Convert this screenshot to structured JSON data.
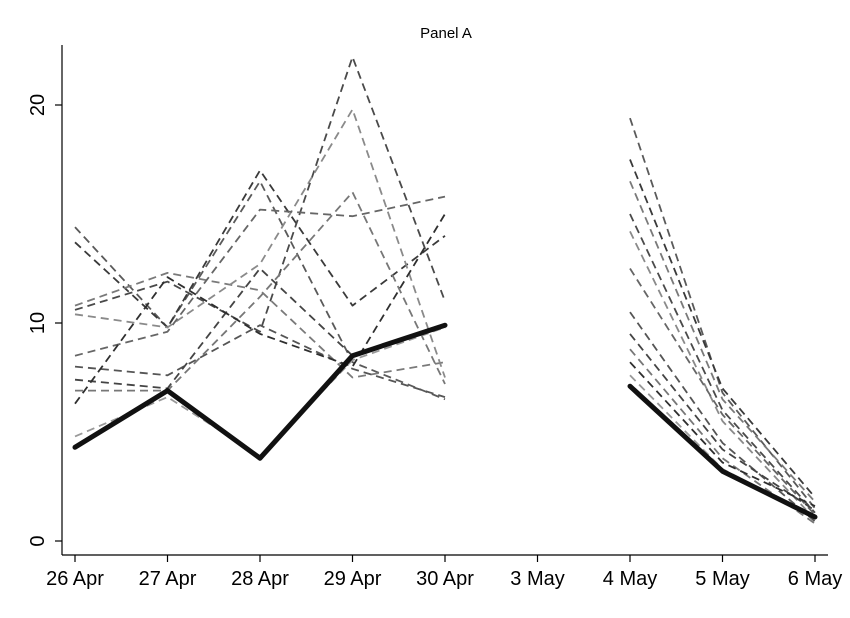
{
  "chart_data": {
    "type": "line",
    "title": "Panel A",
    "xlabel": "",
    "ylabel": "",
    "categories": [
      "26 Apr",
      "27 Apr",
      "28 Apr",
      "29 Apr",
      "30 Apr",
      "3 May",
      "4 May",
      "5 May",
      "6 May"
    ],
    "ylim": [
      0,
      23
    ],
    "yticks": [
      0,
      10,
      20
    ],
    "grid": false,
    "legend": "none",
    "highlight_series": {
      "style": "solid-black-thick",
      "values": [
        4.3,
        6.9,
        3.8,
        8.5,
        9.9,
        null,
        7.1,
        3.2,
        1.1
      ]
    },
    "series": [
      {
        "values": [
          14.4,
          9.8,
          16.5,
          8.2,
          6.5,
          null,
          19.4,
          6.8,
          1.5
        ]
      },
      {
        "values": [
          13.7,
          9.8,
          17.0,
          10.8,
          14.0,
          null,
          17.5,
          7.0,
          2.0
        ]
      },
      {
        "values": [
          10.8,
          12.3,
          11.5,
          7.5,
          8.2,
          null,
          16.5,
          6.5,
          1.8
        ]
      },
      {
        "values": [
          10.6,
          11.9,
          9.6,
          22.2,
          11.0,
          null,
          15.0,
          6.0,
          1.3
        ]
      },
      {
        "values": [
          10.4,
          9.8,
          12.7,
          19.8,
          7.5,
          null,
          14.2,
          5.5,
          1.0
        ]
      },
      {
        "values": [
          8.5,
          9.6,
          15.2,
          14.9,
          15.8,
          null,
          12.5,
          5.8,
          1.2
        ]
      },
      {
        "values": [
          8.0,
          7.6,
          9.9,
          7.9,
          6.6,
          null,
          10.5,
          4.5,
          0.9
        ]
      },
      {
        "values": [
          7.4,
          7.0,
          12.5,
          8.5,
          9.8,
          null,
          9.5,
          4.2,
          1.4
        ]
      },
      {
        "values": [
          6.9,
          6.9,
          11.2,
          16.0,
          7.2,
          null,
          8.8,
          3.8,
          0.8
        ]
      },
      {
        "values": [
          6.3,
          12.1,
          9.5,
          8.0,
          15.0,
          null,
          8.2,
          3.6,
          1.6
        ]
      },
      {
        "values": [
          4.8,
          6.6,
          3.9,
          8.3,
          9.8,
          null,
          7.6,
          3.3,
          1.1
        ]
      }
    ],
    "colors": {
      "highlight": "#111111",
      "series": [
        "#5a5a5a",
        "#3a3a3a",
        "#7a7a7a",
        "#4a4a4a",
        "#8a8a8a",
        "#666666",
        "#555555",
        "#444444",
        "#777777",
        "#2f2f2f",
        "#999999"
      ],
      "axis": "#000000"
    }
  }
}
